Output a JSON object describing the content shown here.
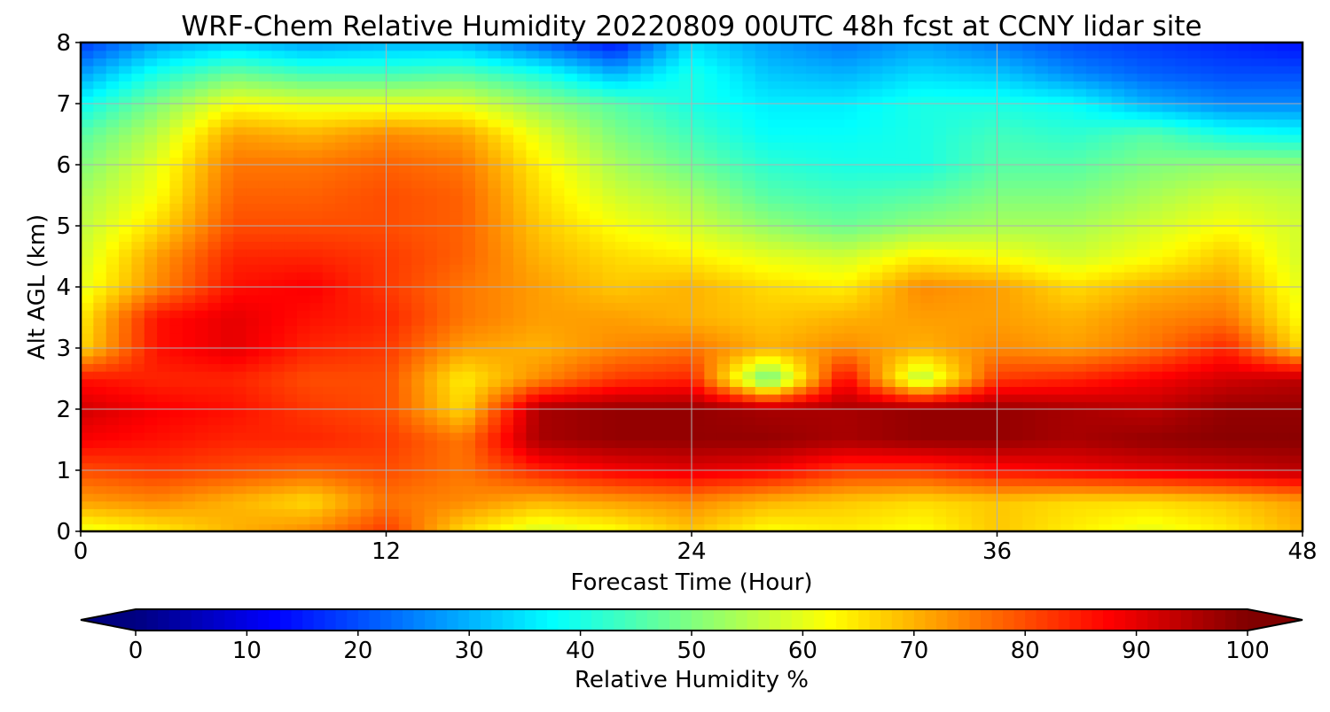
{
  "chart_data": {
    "type": "heatmap",
    "title": "WRF-Chem Relative Humidity 20220809 00UTC 48h fcst at CCNY lidar site",
    "xlabel": "Forecast Time (Hour)",
    "ylabel": "Alt AGL (km)",
    "xlim": [
      0,
      48
    ],
    "ylim": [
      0,
      8
    ],
    "x_ticks": [
      0,
      12,
      24,
      36,
      48
    ],
    "y_ticks": [
      0,
      1,
      2,
      3,
      4,
      5,
      6,
      7,
      8
    ],
    "grid": true,
    "colormap": "jet",
    "colorbar": {
      "label": "Relative Humidity %",
      "min": 0,
      "max": 100,
      "ticks": [
        0,
        10,
        20,
        30,
        40,
        50,
        60,
        70,
        80,
        90,
        100
      ],
      "orientation": "horizontal",
      "extend": "both"
    },
    "x": [
      0,
      3,
      6,
      9,
      12,
      15,
      18,
      21,
      24,
      27,
      30,
      33,
      36,
      39,
      42,
      45,
      48
    ],
    "y": [
      0,
      0.5,
      1,
      1.5,
      2,
      2.5,
      3,
      3.5,
      4,
      4.5,
      5,
      5.5,
      6,
      6.5,
      7,
      7.5,
      8
    ],
    "z": [
      [
        60,
        64,
        70,
        74,
        82,
        66,
        58,
        62,
        68,
        62,
        64,
        62,
        68,
        64,
        60,
        64,
        70
      ],
      [
        72,
        74,
        70,
        66,
        76,
        74,
        70,
        72,
        74,
        70,
        68,
        66,
        68,
        66,
        66,
        68,
        72
      ],
      [
        80,
        82,
        80,
        78,
        80,
        76,
        84,
        88,
        90,
        88,
        82,
        82,
        86,
        88,
        90,
        92,
        94
      ],
      [
        88,
        86,
        84,
        84,
        82,
        76,
        96,
        98,
        98,
        98,
        96,
        98,
        98,
        96,
        98,
        99,
        99
      ],
      [
        92,
        88,
        86,
        82,
        80,
        66,
        96,
        98,
        98,
        96,
        96,
        98,
        98,
        96,
        94,
        98,
        98
      ],
      [
        86,
        84,
        84,
        80,
        80,
        64,
        74,
        82,
        84,
        46,
        88,
        54,
        82,
        84,
        88,
        92,
        94
      ],
      [
        66,
        86,
        90,
        84,
        82,
        72,
        70,
        74,
        76,
        70,
        74,
        70,
        74,
        72,
        76,
        84,
        66
      ],
      [
        64,
        86,
        90,
        86,
        84,
        76,
        72,
        72,
        70,
        68,
        70,
        72,
        72,
        70,
        74,
        76,
        62
      ],
      [
        60,
        74,
        86,
        88,
        82,
        76,
        72,
        68,
        70,
        66,
        64,
        74,
        72,
        66,
        70,
        72,
        60
      ],
      [
        58,
        72,
        84,
        84,
        82,
        78,
        70,
        66,
        64,
        60,
        58,
        64,
        62,
        58,
        62,
        68,
        58
      ],
      [
        56,
        66,
        80,
        80,
        80,
        78,
        68,
        62,
        58,
        52,
        48,
        52,
        54,
        54,
        58,
        62,
        58
      ],
      [
        54,
        62,
        78,
        78,
        80,
        78,
        66,
        58,
        54,
        46,
        44,
        46,
        50,
        50,
        54,
        58,
        56
      ],
      [
        50,
        60,
        76,
        76,
        78,
        76,
        64,
        54,
        48,
        42,
        40,
        40,
        46,
        46,
        50,
        52,
        52
      ],
      [
        46,
        56,
        72,
        70,
        74,
        72,
        60,
        50,
        44,
        38,
        38,
        40,
        44,
        42,
        46,
        40,
        38
      ],
      [
        38,
        50,
        62,
        60,
        60,
        60,
        52,
        46,
        40,
        36,
        36,
        40,
        40,
        38,
        30,
        26,
        26
      ],
      [
        28,
        40,
        48,
        44,
        44,
        46,
        40,
        30,
        40,
        32,
        30,
        34,
        32,
        26,
        22,
        20,
        20
      ],
      [
        18,
        28,
        32,
        28,
        30,
        30,
        22,
        14,
        34,
        28,
        24,
        28,
        24,
        20,
        18,
        16,
        14
      ]
    ]
  }
}
